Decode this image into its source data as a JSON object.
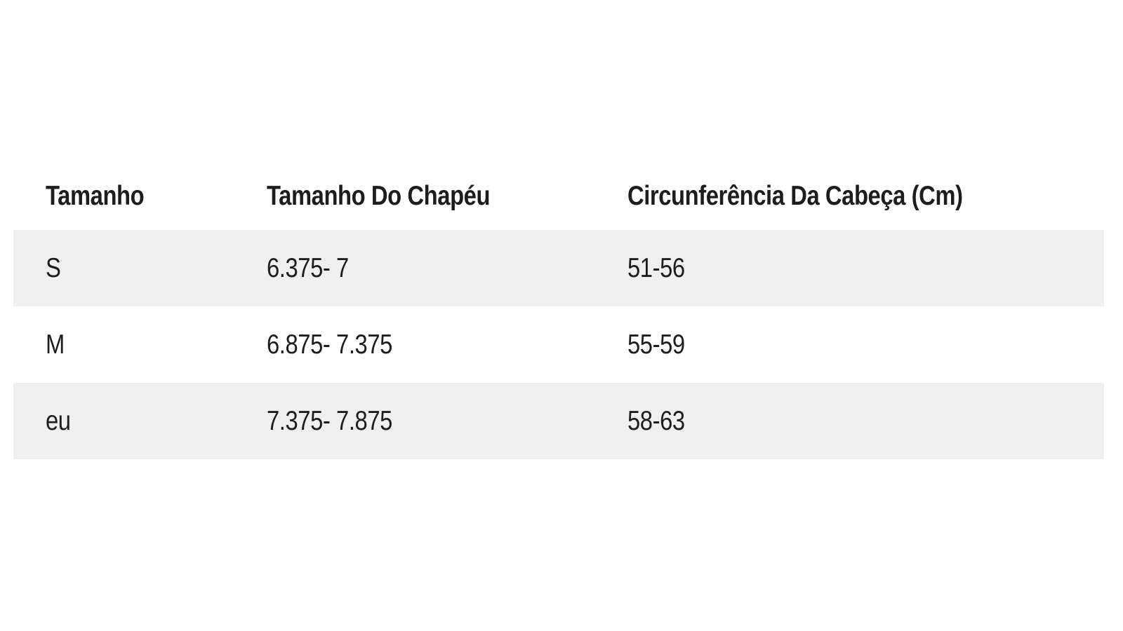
{
  "page": {
    "background_color": "#ffffff"
  },
  "table": {
    "stripe_color": "#f0f0f0",
    "text_color": "#1d1d1d",
    "columns": [
      {
        "label": "Tamanho"
      },
      {
        "label": "Tamanho Do Chapéu"
      },
      {
        "label": "Circunferência Da Cabeça (Cm)"
      }
    ],
    "rows": [
      {
        "size": "S",
        "hat_size": "6.375- 7",
        "head_circumference_cm": "51-56"
      },
      {
        "size": "M",
        "hat_size": "6.875- 7.375",
        "head_circumference_cm": "55-59"
      },
      {
        "size": "eu",
        "hat_size": "7.375- 7.875",
        "head_circumference_cm": "58-63"
      }
    ]
  }
}
